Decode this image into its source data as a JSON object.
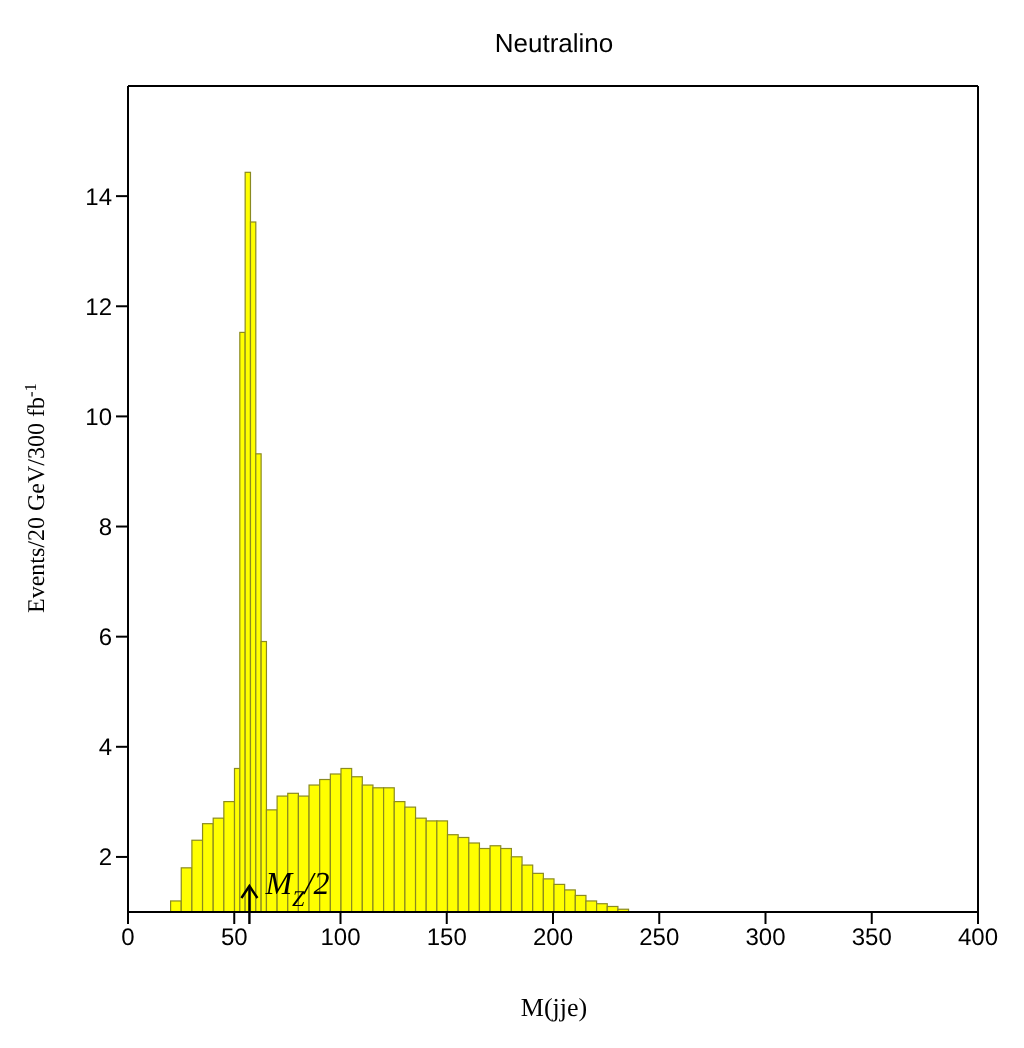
{
  "chart_data": {
    "type": "histogram",
    "title": "Neutralino",
    "xlabel": "M(jje)",
    "ylabel": "Events/20 GeV/300 fb$^{-1}$",
    "bins": [
      20,
      25,
      30,
      35,
      40,
      45,
      50,
      52.5,
      55,
      57.5,
      60,
      62.5,
      65,
      70,
      75,
      80,
      85,
      90,
      95,
      100,
      105,
      110,
      115,
      120,
      125,
      130,
      135,
      140,
      145,
      150,
      155,
      160,
      165,
      170,
      175,
      180,
      185,
      190,
      195,
      200,
      205,
      210,
      215,
      220,
      225,
      230,
      235
    ],
    "values": [
      1.2,
      1.8,
      2.3,
      2.6,
      2.7,
      3.0,
      3.6,
      11.5,
      14.4,
      13.5,
      9.3,
      5.9,
      2.85,
      3.1,
      3.15,
      3.1,
      3.3,
      3.4,
      3.5,
      3.6,
      3.45,
      3.3,
      3.25,
      3.25,
      3.0,
      2.9,
      2.7,
      2.65,
      2.65,
      2.4,
      2.35,
      2.25,
      2.15,
      2.2,
      2.15,
      2.0,
      1.85,
      1.7,
      1.6,
      1.5,
      1.4,
      1.3,
      1.2,
      1.15,
      1.1,
      1.05
    ],
    "color": "#ffff00",
    "xlim": [
      0,
      400
    ],
    "xticks": [
      0,
      50,
      100,
      150,
      200,
      250,
      300,
      350,
      400
    ],
    "ylim": [
      1,
      16
    ],
    "yticks": [
      2,
      4,
      6,
      8,
      10,
      12,
      14
    ],
    "grid": false,
    "annotations": [
      {
        "text": "M$_{Z}$/2",
        "x": 57,
        "y": 1
      }
    ]
  }
}
